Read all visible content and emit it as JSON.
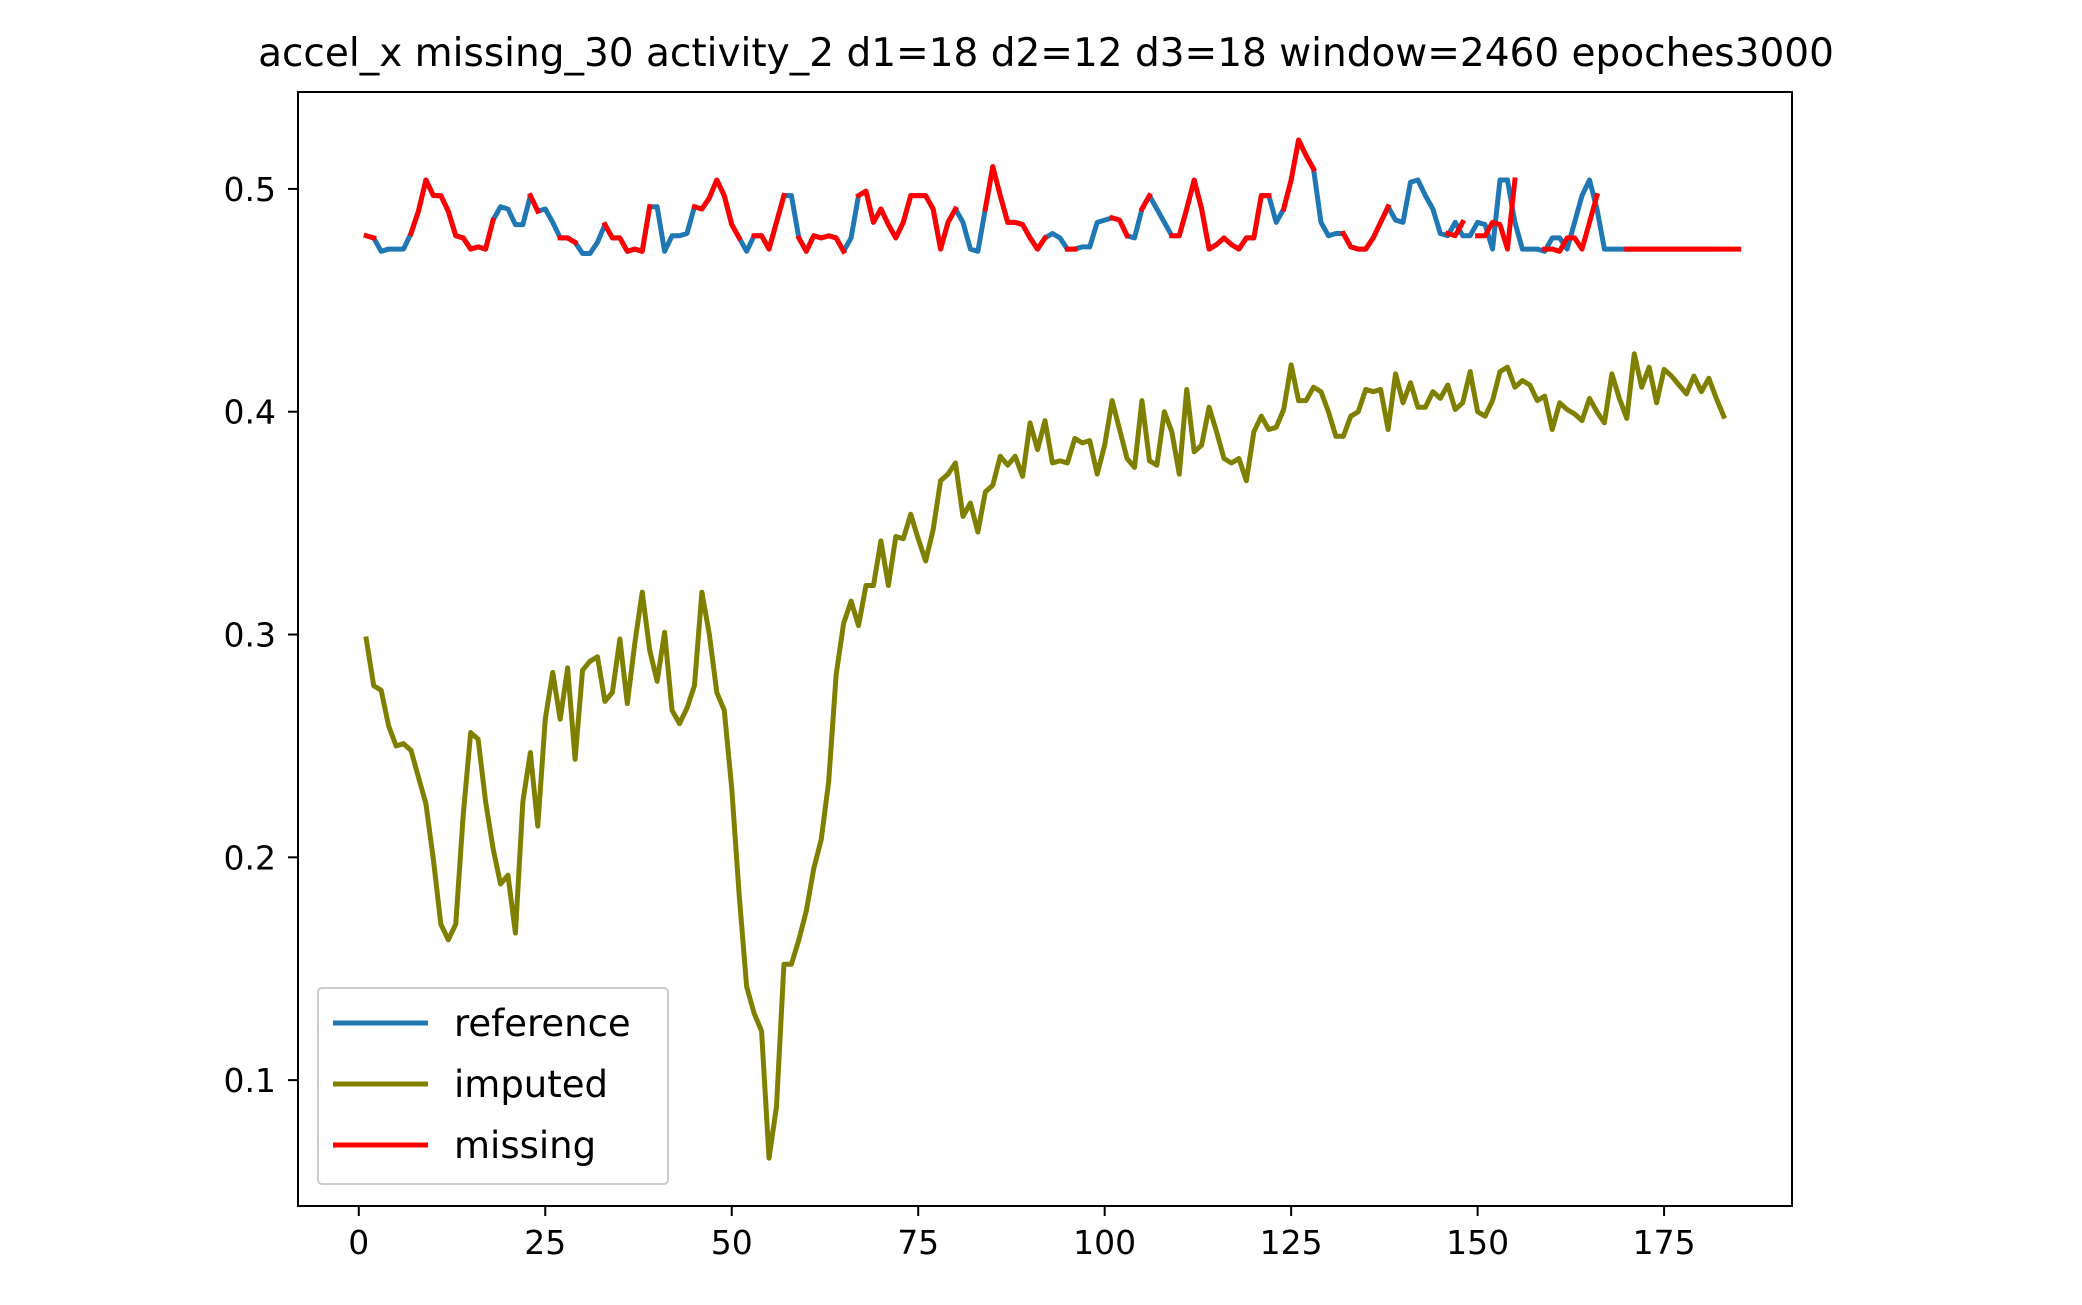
{
  "chart_data": {
    "type": "line",
    "title": "accel_x missing_30 activity_2 d1=18 d2=12 d3=18 window=2460 epoches3000",
    "xlabel": "",
    "ylabel": "",
    "xlim": [
      -8.15,
      192.15
    ],
    "ylim": [
      0.0435,
      0.5435
    ],
    "x_ticks": [
      0,
      25,
      50,
      75,
      100,
      125,
      150,
      175
    ],
    "x_tick_labels": [
      "0",
      "25",
      "50",
      "75",
      "100",
      "125",
      "150",
      "175"
    ],
    "y_ticks": [
      0.1,
      0.2,
      0.3,
      0.4,
      0.5
    ],
    "y_tick_labels": [
      "0.1",
      "0.2",
      "0.3",
      "0.4",
      "0.5"
    ],
    "grid": false,
    "legend_position": "lower-left",
    "colors": {
      "reference": "#1f77b4",
      "imputed": "#808000",
      "missing": "#ff0000"
    },
    "series": [
      {
        "name": "reference",
        "x_start": 1,
        "values": [
          0.479,
          0.478,
          0.472,
          0.473,
          0.473,
          0.473,
          0.48,
          0.49,
          0.504,
          0.497,
          0.497,
          0.49,
          0.479,
          0.478,
          0.473,
          0.474,
          0.473,
          0.486,
          0.492,
          0.491,
          0.484,
          0.484,
          0.497,
          0.49,
          0.491,
          0.485,
          0.478,
          0.478,
          0.476,
          0.471,
          0.471,
          0.476,
          0.484,
          0.478,
          0.478,
          0.472,
          0.473,
          0.472,
          0.492,
          0.492,
          0.472,
          0.479,
          0.479,
          0.48,
          0.492,
          0.491,
          0.496,
          0.504,
          0.497,
          0.484,
          0.478,
          0.472,
          0.479,
          0.479,
          0.473,
          0.485,
          0.497,
          0.497,
          0.478,
          0.472,
          0.479,
          0.478,
          0.479,
          0.478,
          0.472,
          0.478,
          0.497,
          0.499,
          0.485,
          0.491,
          0.484,
          0.478,
          0.485,
          0.497,
          0.497,
          0.497,
          0.491,
          0.473,
          0.485,
          0.491,
          0.485,
          0.473,
          0.472,
          0.491,
          0.51,
          0.497,
          0.485,
          0.485,
          0.484,
          0.478,
          0.473,
          0.478,
          0.48,
          0.478,
          0.473,
          0.473,
          0.474,
          0.474,
          0.485,
          0.486,
          0.487,
          0.486,
          0.479,
          0.478,
          0.491,
          0.497,
          0.491,
          0.485,
          0.479,
          0.479,
          0.491,
          0.504,
          0.491,
          0.473,
          0.475,
          0.478,
          0.475,
          0.473,
          0.478,
          0.478,
          0.497,
          0.497,
          0.485,
          0.491,
          0.504,
          0.522,
          0.515,
          0.509,
          0.485,
          0.479,
          0.48,
          0.48,
          0.474,
          0.473,
          0.473,
          0.478,
          0.485,
          0.492,
          0.486,
          0.485,
          0.503,
          0.504,
          0.497,
          0.491,
          0.48,
          0.479,
          0.485,
          0.479,
          0.479,
          0.485,
          0.484,
          0.473,
          0.504,
          0.504,
          0.485,
          0.473,
          0.473,
          0.473,
          0.472,
          0.478,
          0.478,
          0.473,
          0.485,
          0.497,
          0.504,
          0.491,
          0.473,
          0.473,
          0.473,
          0.473,
          0.473,
          0.473,
          0.473,
          0.473,
          0.473,
          0.473,
          0.473,
          0.473,
          0.473,
          0.473,
          0.473,
          0.473
        ]
      },
      {
        "name": "imputed",
        "x_start": 1,
        "values": [
          0.298,
          0.277,
          0.275,
          0.259,
          0.25,
          0.251,
          0.248,
          0.236,
          0.224,
          0.199,
          0.17,
          0.163,
          0.17,
          0.219,
          0.256,
          0.253,
          0.225,
          0.204,
          0.188,
          0.192,
          0.166,
          0.225,
          0.247,
          0.214,
          0.262,
          0.283,
          0.262,
          0.285,
          0.244,
          0.284,
          0.288,
          0.29,
          0.27,
          0.274,
          0.298,
          0.269,
          0.296,
          0.319,
          0.293,
          0.279,
          0.301,
          0.266,
          0.26,
          0.267,
          0.277,
          0.319,
          0.3,
          0.274,
          0.266,
          0.231,
          0.183,
          0.142,
          0.13,
          0.122,
          0.065,
          0.088,
          0.152,
          0.152,
          0.163,
          0.176,
          0.195,
          0.208,
          0.234,
          0.282,
          0.305,
          0.315,
          0.304,
          0.322,
          0.322,
          0.342,
          0.322,
          0.344,
          0.343,
          0.354,
          0.343,
          0.333,
          0.347,
          0.369,
          0.372,
          0.377,
          0.353,
          0.359,
          0.346,
          0.364,
          0.367,
          0.38,
          0.376,
          0.38,
          0.371,
          0.395,
          0.383,
          0.396,
          0.377,
          0.378,
          0.377,
          0.388,
          0.386,
          0.387,
          0.372,
          0.385,
          0.405,
          0.392,
          0.379,
          0.375,
          0.405,
          0.378,
          0.376,
          0.4,
          0.391,
          0.372,
          0.41,
          0.382,
          0.385,
          0.402,
          0.391,
          0.379,
          0.377,
          0.379,
          0.369,
          0.391,
          0.398,
          0.392,
          0.393,
          0.401,
          0.421,
          0.405,
          0.405,
          0.411,
          0.409,
          0.4,
          0.389,
          0.389,
          0.398,
          0.4,
          0.41,
          0.409,
          0.41,
          0.392,
          0.417,
          0.404,
          0.413,
          0.402,
          0.402,
          0.409,
          0.406,
          0.412,
          0.401,
          0.404,
          0.418,
          0.4,
          0.398,
          0.405,
          0.418,
          0.42,
          0.411,
          0.414,
          0.412,
          0.405,
          0.407,
          0.392,
          0.404,
          0.401,
          0.399,
          0.396,
          0.406,
          0.4,
          0.395,
          0.417,
          0.406,
          0.397,
          0.426,
          0.411,
          0.42,
          0.404,
          0.419,
          0.416,
          0.412,
          0.408,
          0.416,
          0.409,
          0.415,
          0.406,
          0.398
        ]
      },
      {
        "name": "missing",
        "x_start": 1,
        "values": [
          0.479,
          0.478,
          null,
          null,
          0.473,
          null,
          0.48,
          0.49,
          0.504,
          0.497,
          0.497,
          0.49,
          0.479,
          0.478,
          0.473,
          0.474,
          0.473,
          0.486,
          null,
          null,
          null,
          null,
          0.497,
          0.49,
          null,
          null,
          0.478,
          0.478,
          0.476,
          null,
          null,
          null,
          0.484,
          0.478,
          0.478,
          0.472,
          0.473,
          0.472,
          0.492,
          null,
          null,
          null,
          null,
          null,
          0.492,
          0.491,
          0.496,
          0.504,
          0.497,
          0.484,
          0.478,
          null,
          0.479,
          0.479,
          0.473,
          0.485,
          0.497,
          null,
          0.478,
          0.472,
          0.479,
          0.478,
          0.479,
          0.478,
          0.472,
          null,
          0.497,
          0.499,
          0.485,
          0.491,
          0.484,
          0.478,
          0.485,
          0.497,
          0.497,
          0.497,
          0.491,
          0.473,
          0.485,
          0.491,
          null,
          null,
          null,
          0.491,
          0.51,
          0.497,
          0.485,
          0.485,
          0.484,
          0.478,
          0.473,
          0.478,
          null,
          null,
          0.473,
          0.473,
          null,
          null,
          null,
          null,
          0.487,
          0.486,
          0.479,
          null,
          0.491,
          0.497,
          null,
          null,
          0.479,
          0.479,
          0.491,
          0.504,
          0.491,
          0.473,
          0.475,
          0.478,
          0.475,
          0.473,
          0.478,
          0.478,
          0.497,
          0.497,
          null,
          0.491,
          0.504,
          0.522,
          0.515,
          0.509,
          null,
          null,
          null,
          0.48,
          0.474,
          0.473,
          0.473,
          0.478,
          0.485,
          0.492,
          null,
          null,
          null,
          null,
          null,
          null,
          null,
          0.48,
          0.479,
          0.485,
          null,
          0.479,
          0.479,
          0.485,
          0.484,
          0.473,
          0.504,
          null,
          null,
          null,
          0.473,
          0.473,
          0.472,
          0.478,
          0.478,
          0.473,
          0.485,
          0.497,
          null,
          null,
          null,
          0.473,
          0.473,
          0.473,
          0.473,
          0.473,
          0.473,
          0.473,
          0.473,
          0.473,
          0.473,
          0.473,
          0.473,
          0.473,
          0.473,
          0.473,
          0.473
        ]
      }
    ]
  }
}
